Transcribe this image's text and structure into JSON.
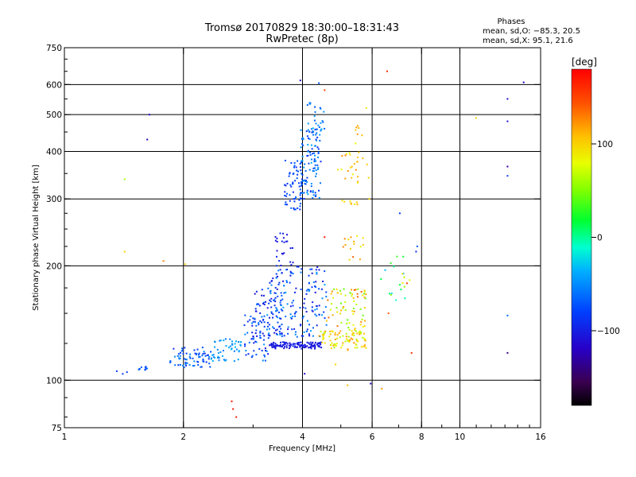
{
  "chart_data": {
    "type": "scatter",
    "title": "Tromsø 20170829 18:30:00–18:31:43",
    "subtitle": "RwPretec (8p)",
    "xlabel": "Frequency [MHz]",
    "ylabel": "Stationary phase Virtual Height [km]",
    "x_scale": "log",
    "y_scale": "log",
    "xlim": [
      1,
      16
    ],
    "ylim": [
      75,
      750
    ],
    "x_ticks": [
      {
        "value": 1,
        "label": "1"
      },
      {
        "value": 2,
        "label": "2"
      },
      {
        "value": 4,
        "label": "4"
      },
      {
        "value": 6,
        "label": "6"
      },
      {
        "value": 8,
        "label": "8"
      },
      {
        "value": 10,
        "label": "10"
      },
      {
        "value": 16,
        "label": "16"
      }
    ],
    "x_grid": [
      2,
      4,
      6,
      8,
      10
    ],
    "y_ticks": [
      {
        "value": 75,
        "label": "75"
      },
      {
        "value": 100,
        "label": "100"
      },
      {
        "value": 200,
        "label": "200"
      },
      {
        "value": 300,
        "label": "300"
      },
      {
        "value": 400,
        "label": "400"
      },
      {
        "value": 500,
        "label": "500"
      },
      {
        "value": 600,
        "label": "600"
      },
      {
        "value": 750,
        "label": "750"
      }
    ],
    "y_grid": [
      100,
      200,
      300,
      400,
      500,
      600
    ],
    "grid": true,
    "stats": {
      "heading": "Phases",
      "line_o": "mean, sd,O: −85.3, 20.5",
      "line_x": "mean, sd,X:  95.1, 21.6"
    },
    "colorbar": {
      "label": "[deg]",
      "range": [
        -180,
        180
      ],
      "ticks": [
        {
          "value": 100,
          "label": "100"
        },
        {
          "value": 0,
          "label": "0"
        },
        {
          "value": -100,
          "label": "−100"
        }
      ]
    },
    "clusters": [
      {
        "x": [
          1.34,
          1.44
        ],
        "y": [
          103,
          106
        ],
        "phase": [
          -90,
          -80
        ],
        "n": 3
      },
      {
        "x": [
          1.52,
          1.62
        ],
        "y": [
          106,
          109
        ],
        "phase": [
          -80,
          -60
        ],
        "n": 10
      },
      {
        "x": [
          1.85,
          2.35
        ],
        "y": [
          108,
          122
        ],
        "phase": [
          -95,
          -50
        ],
        "n": 70
      },
      {
        "x": [
          2.35,
          2.8
        ],
        "y": [
          112,
          130
        ],
        "phase": [
          -60,
          -30
        ],
        "n": 50
      },
      {
        "x": [
          2.85,
          3.3
        ],
        "y": [
          112,
          150
        ],
        "phase": [
          -105,
          -45
        ],
        "n": 60
      },
      {
        "x": [
          3.0,
          3.6
        ],
        "y": [
          130,
          175
        ],
        "phase": [
          -110,
          -60
        ],
        "n": 70
      },
      {
        "x": [
          3.3,
          4.5
        ],
        "y": [
          121,
          126
        ],
        "phase": [
          -110,
          -95
        ],
        "n": 120
      },
      {
        "x": [
          3.3,
          4.6
        ],
        "y": [
          130,
          200
        ],
        "phase": [
          -110,
          -40
        ],
        "n": 160
      },
      {
        "x": [
          3.4,
          3.8
        ],
        "y": [
          200,
          245
        ],
        "phase": [
          -110,
          -90
        ],
        "n": 25
      },
      {
        "x": [
          3.6,
          4.0
        ],
        "y": [
          280,
          380
        ],
        "phase": [
          -95,
          -65
        ],
        "n": 60
      },
      {
        "x": [
          3.95,
          4.45
        ],
        "y": [
          300,
          460
        ],
        "phase": [
          -90,
          -40
        ],
        "n": 110
      },
      {
        "x": [
          4.1,
          4.55
        ],
        "y": [
          450,
          540
        ],
        "phase": [
          -75,
          -30
        ],
        "n": 25
      },
      {
        "x": [
          4.4,
          5.8
        ],
        "y": [
          120,
          135
        ],
        "phase": [
          60,
          125
        ],
        "n": 90
      },
      {
        "x": [
          4.6,
          5.8
        ],
        "y": [
          135,
          175
        ],
        "phase": [
          40,
          140
        ],
        "n": 70
      },
      {
        "x": [
          4.9,
          5.9
        ],
        "y": [
          330,
          400
        ],
        "phase": [
          80,
          130
        ],
        "n": 25
      },
      {
        "x": [
          5.0,
          5.7
        ],
        "y": [
          290,
          300
        ],
        "phase": [
          90,
          120
        ],
        "n": 8
      },
      {
        "x": [
          5.4,
          5.7
        ],
        "y": [
          440,
          480
        ],
        "phase": [
          100,
          120
        ],
        "n": 6
      },
      {
        "x": [
          5.0,
          5.8
        ],
        "y": [
          205,
          240
        ],
        "phase": [
          70,
          140
        ],
        "n": 15
      },
      {
        "x": [
          6.3,
          7.5
        ],
        "y": [
          160,
          215
        ],
        "phase": [
          -40,
          90
        ],
        "n": 20
      }
    ],
    "points": [
      {
        "x": 3.95,
        "y": 615,
        "phase": -110
      },
      {
        "x": 6.55,
        "y": 650,
        "phase": 160
      },
      {
        "x": 14.5,
        "y": 608,
        "phase": -120
      },
      {
        "x": 13.2,
        "y": 550,
        "phase": -110
      },
      {
        "x": 1.64,
        "y": 500,
        "phase": -115
      },
      {
        "x": 13.2,
        "y": 480,
        "phase": -110
      },
      {
        "x": 1.62,
        "y": 430,
        "phase": -120
      },
      {
        "x": 11.0,
        "y": 490,
        "phase": 100
      },
      {
        "x": 13.2,
        "y": 365,
        "phase": -130
      },
      {
        "x": 13.2,
        "y": 345,
        "phase": -80
      },
      {
        "x": 1.42,
        "y": 338,
        "phase": 60
      },
      {
        "x": 7.05,
        "y": 275,
        "phase": -80
      },
      {
        "x": 1.42,
        "y": 218,
        "phase": 100
      },
      {
        "x": 1.78,
        "y": 206,
        "phase": 130
      },
      {
        "x": 2.02,
        "y": 202,
        "phase": 100
      },
      {
        "x": 13.2,
        "y": 148,
        "phase": -60
      },
      {
        "x": 13.2,
        "y": 118,
        "phase": -140
      },
      {
        "x": 7.55,
        "y": 118,
        "phase": 160
      },
      {
        "x": 7.35,
        "y": 180,
        "phase": 150
      },
      {
        "x": 6.6,
        "y": 150,
        "phase": 140
      },
      {
        "x": 5.95,
        "y": 98,
        "phase": -120
      },
      {
        "x": 6.35,
        "y": 95,
        "phase": 120
      },
      {
        "x": 5.2,
        "y": 97,
        "phase": 110
      },
      {
        "x": 4.05,
        "y": 104,
        "phase": -110
      },
      {
        "x": 4.85,
        "y": 110,
        "phase": 100
      },
      {
        "x": 2.65,
        "y": 88,
        "phase": 170
      },
      {
        "x": 2.67,
        "y": 84,
        "phase": 170
      },
      {
        "x": 2.72,
        "y": 80,
        "phase": 170
      },
      {
        "x": 7.75,
        "y": 218,
        "phase": -90
      },
      {
        "x": 7.8,
        "y": 225,
        "phase": -70
      },
      {
        "x": 4.55,
        "y": 238,
        "phase": 170
      },
      {
        "x": 5.9,
        "y": 300,
        "phase": 100
      },
      {
        "x": 5.8,
        "y": 520,
        "phase": 90
      },
      {
        "x": 5.45,
        "y": 420,
        "phase": 80
      },
      {
        "x": 4.55,
        "y": 580,
        "phase": 150
      },
      {
        "x": 4.4,
        "y": 605,
        "phase": -70
      }
    ]
  }
}
